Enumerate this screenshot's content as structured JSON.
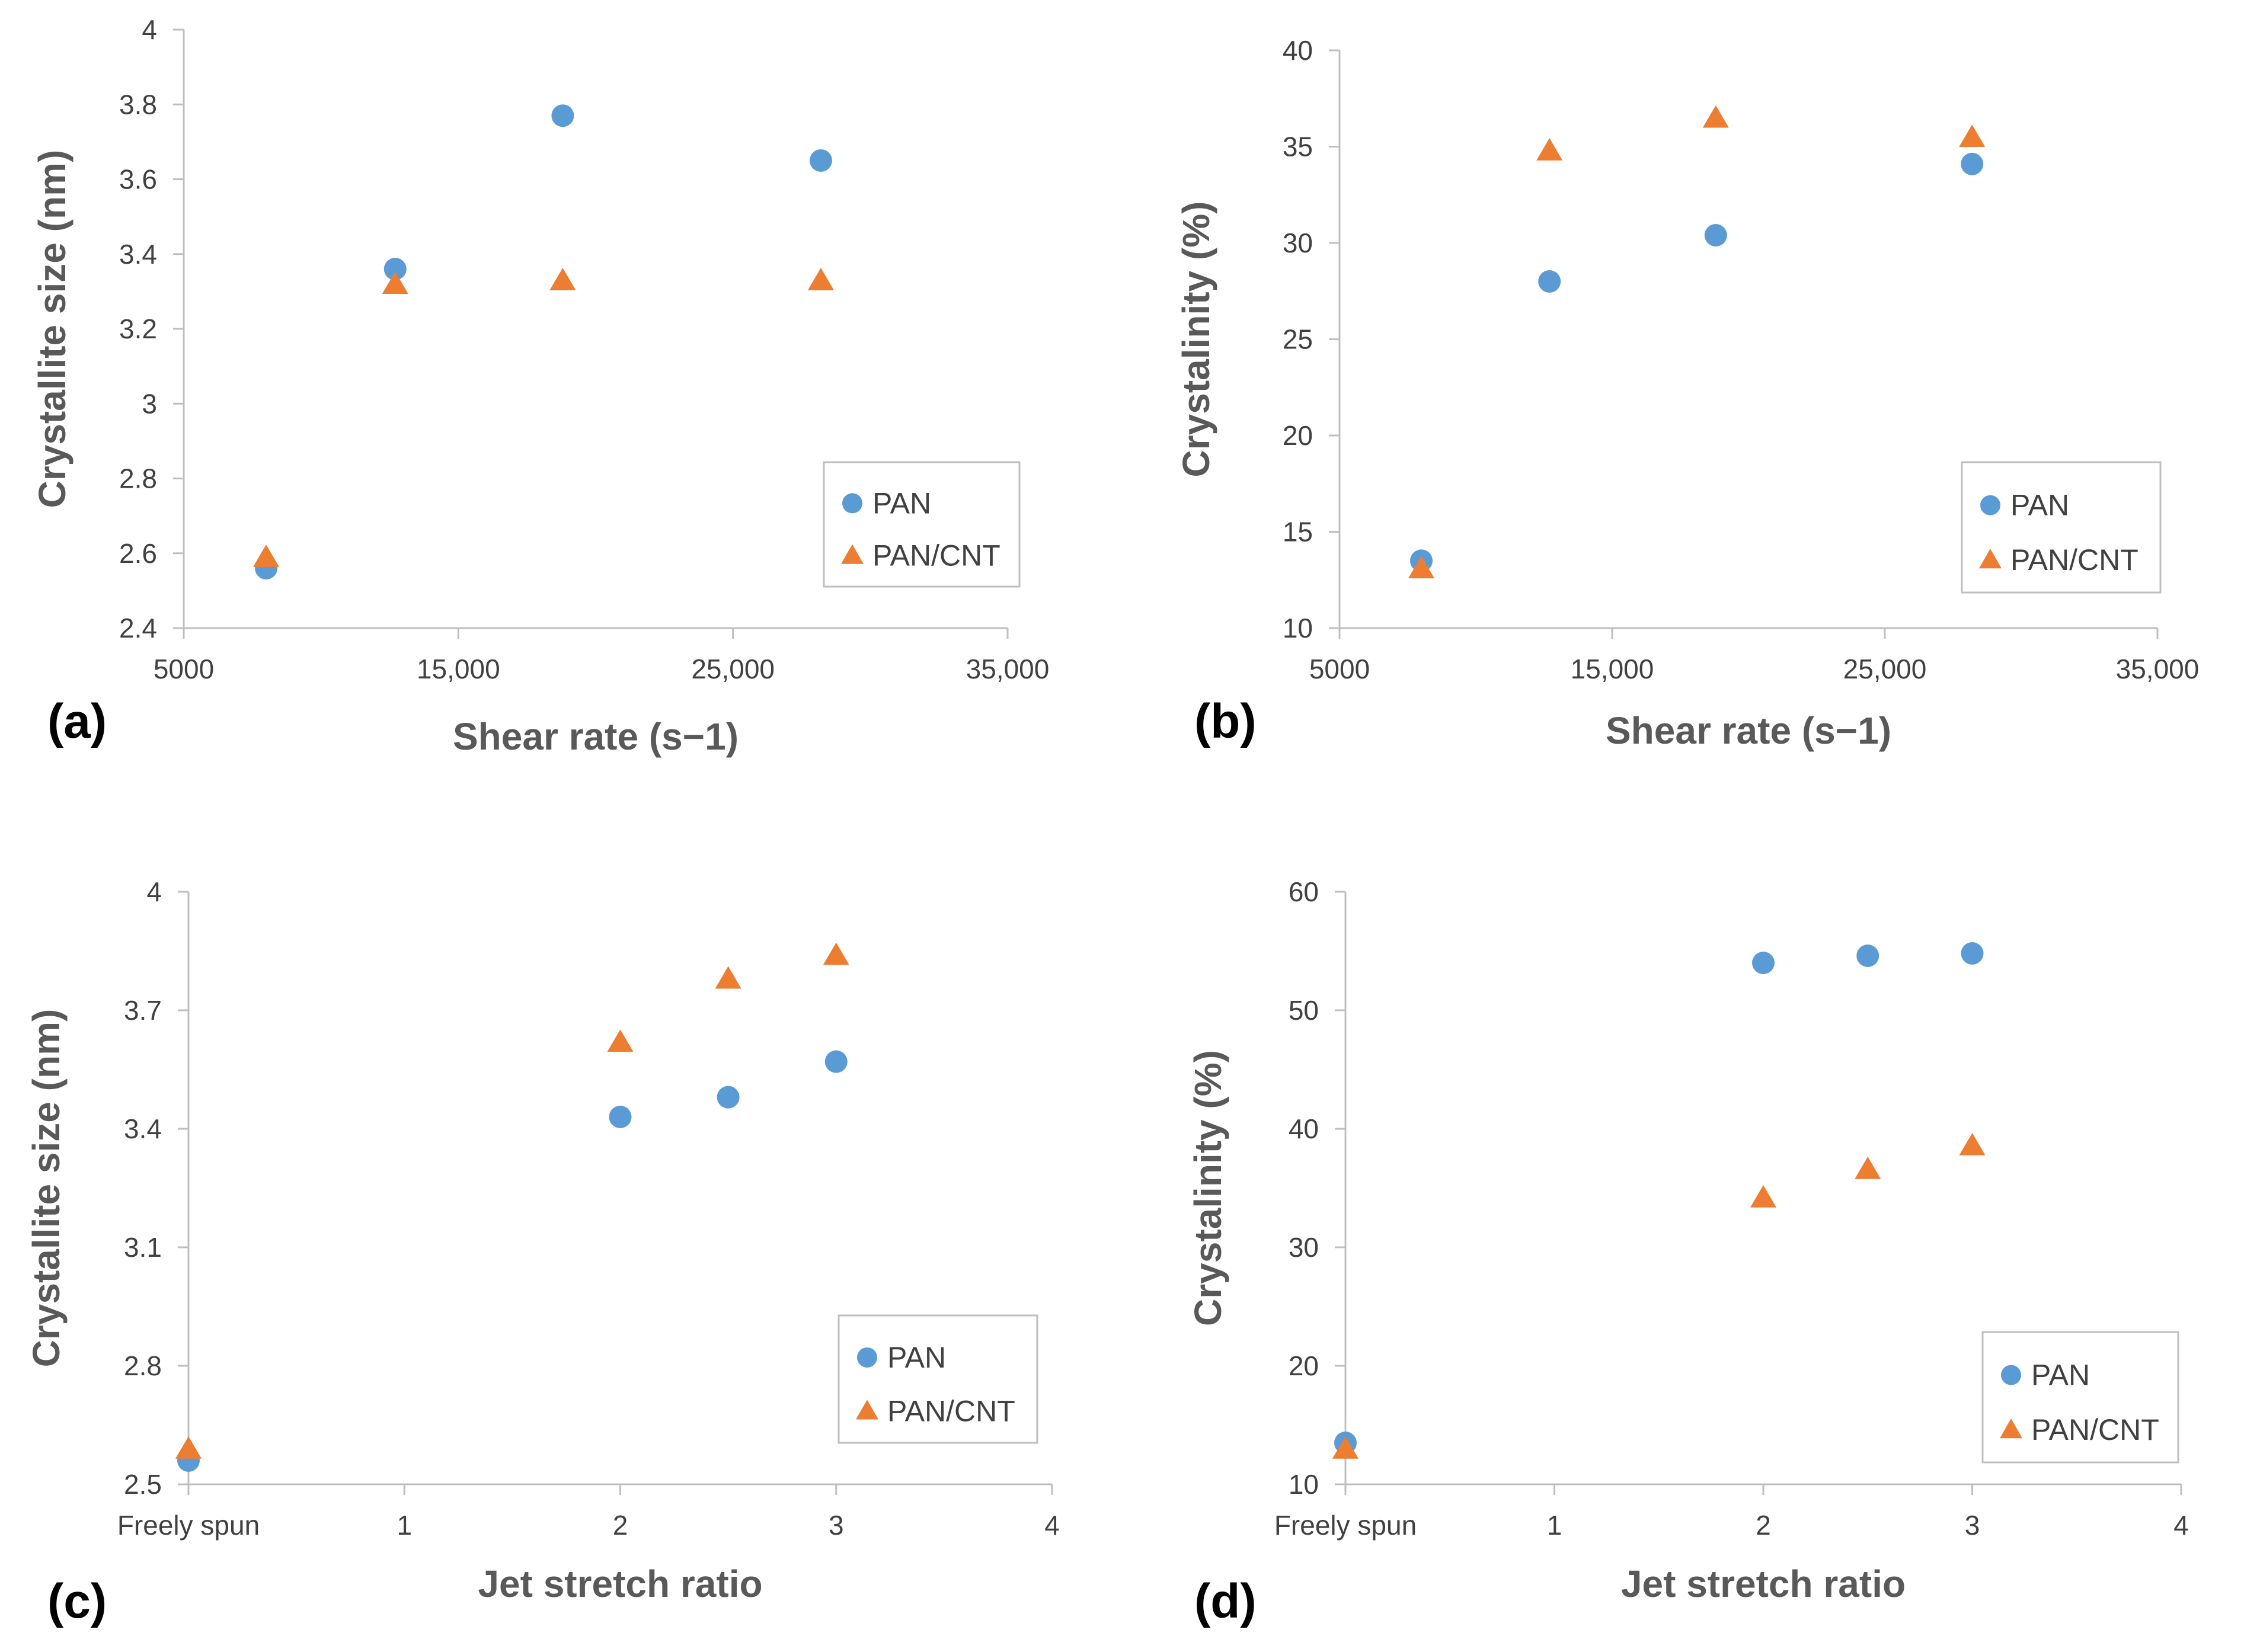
{
  "colors": {
    "pan": "#5b9bd5",
    "pan_cnt": "#ed7d31"
  },
  "chart_data": [
    {
      "type": "scatter",
      "panel": "(a)",
      "xlabel": "Shear rate (s−1)",
      "ylabel": "Crystallite size (nm)",
      "xlim": [
        5000,
        35000
      ],
      "ylim": [
        2.4,
        4
      ],
      "x_ticks": [
        5000,
        15000,
        25000,
        35000
      ],
      "x_tick_labels": [
        "5000",
        "15,000",
        "25,000",
        "35,000"
      ],
      "y_ticks": [
        2.4,
        2.6,
        2.8,
        3,
        3.2,
        3.4,
        3.6,
        3.8,
        4
      ],
      "y_tick_labels": [
        "2.4",
        "2.6",
        "2.8",
        "3",
        "3.2",
        "3.4",
        "3.6",
        "3.8",
        "4"
      ],
      "legend": {
        "position": "bottom-right",
        "entries": [
          "PAN",
          "PAN/CNT"
        ]
      },
      "series": [
        {
          "name": "PAN",
          "marker": "circle",
          "x": [
            8000,
            12700,
            18800,
            28200
          ],
          "y": [
            2.56,
            3.36,
            3.77,
            3.65
          ]
        },
        {
          "name": "PAN/CNT",
          "marker": "triangle",
          "x": [
            8000,
            12700,
            18800,
            28200
          ],
          "y": [
            2.59,
            3.32,
            3.33,
            3.33
          ]
        }
      ]
    },
    {
      "type": "scatter",
      "panel": "(b)",
      "xlabel": "Shear rate (s−1)",
      "ylabel": "Crystalinity (%)",
      "xlim": [
        5000,
        35000
      ],
      "ylim": [
        10,
        40
      ],
      "x_ticks": [
        5000,
        15000,
        25000,
        35000
      ],
      "x_tick_labels": [
        "5000",
        "15,000",
        "25,000",
        "35,000"
      ],
      "y_ticks": [
        10,
        15,
        20,
        25,
        30,
        35,
        40
      ],
      "y_tick_labels": [
        "10",
        "15",
        "20",
        "25",
        "30",
        "35",
        "40"
      ],
      "legend": {
        "position": "bottom-right",
        "entries": [
          "PAN",
          "PAN/CNT"
        ]
      },
      "series": [
        {
          "name": "PAN",
          "marker": "circle",
          "x": [
            8000,
            12700,
            18800,
            28200
          ],
          "y": [
            13.5,
            28.0,
            30.4,
            34.1
          ]
        },
        {
          "name": "PAN/CNT",
          "marker": "triangle",
          "x": [
            8000,
            12700,
            18800,
            28200
          ],
          "y": [
            13.1,
            34.8,
            36.5,
            35.5
          ]
        }
      ]
    },
    {
      "type": "scatter",
      "panel": "(c)",
      "xlabel": "Jet stretch ratio",
      "ylabel": "Crystallite size (nm)",
      "xlim": [
        0,
        4
      ],
      "ylim": [
        2.5,
        4
      ],
      "x_ticks": [
        0,
        1,
        2,
        3,
        4
      ],
      "x_tick_labels": [
        "Freely spun",
        "1",
        "2",
        "3",
        "4"
      ],
      "y_ticks": [
        2.5,
        2.8,
        3.1,
        3.4,
        3.7,
        4
      ],
      "y_tick_labels": [
        "2.5",
        "2.8",
        "3.1",
        "3.4",
        "3.7",
        "4"
      ],
      "legend": {
        "position": "bottom-right",
        "entries": [
          "PAN",
          "PAN/CNT"
        ]
      },
      "series": [
        {
          "name": "PAN",
          "marker": "circle",
          "x": [
            0,
            2,
            2.5,
            3
          ],
          "y": [
            2.56,
            3.43,
            3.48,
            3.57
          ]
        },
        {
          "name": "PAN/CNT",
          "marker": "triangle",
          "x": [
            0,
            2,
            2.5,
            3
          ],
          "y": [
            2.59,
            3.62,
            3.78,
            3.84
          ]
        }
      ]
    },
    {
      "type": "scatter",
      "panel": "(d)",
      "xlabel": "Jet stretch ratio",
      "ylabel": "Crystalinity (%)",
      "xlim": [
        0,
        4
      ],
      "ylim": [
        10,
        60
      ],
      "x_ticks": [
        0,
        1,
        2,
        3,
        4
      ],
      "x_tick_labels": [
        "Freely spun",
        "1",
        "2",
        "3",
        "4"
      ],
      "y_ticks": [
        10,
        20,
        30,
        40,
        50,
        60
      ],
      "y_tick_labels": [
        "10",
        "20",
        "30",
        "40",
        "50",
        "60"
      ],
      "legend": {
        "position": "bottom-right",
        "entries": [
          "PAN",
          "PAN/CNT"
        ]
      },
      "series": [
        {
          "name": "PAN",
          "marker": "circle",
          "x": [
            0,
            2,
            2.5,
            3
          ],
          "y": [
            13.5,
            54.0,
            54.6,
            54.8
          ]
        },
        {
          "name": "PAN/CNT",
          "marker": "triangle",
          "x": [
            0,
            2,
            2.5,
            3
          ],
          "y": [
            13.0,
            34.2,
            36.6,
            38.6
          ]
        }
      ]
    }
  ]
}
